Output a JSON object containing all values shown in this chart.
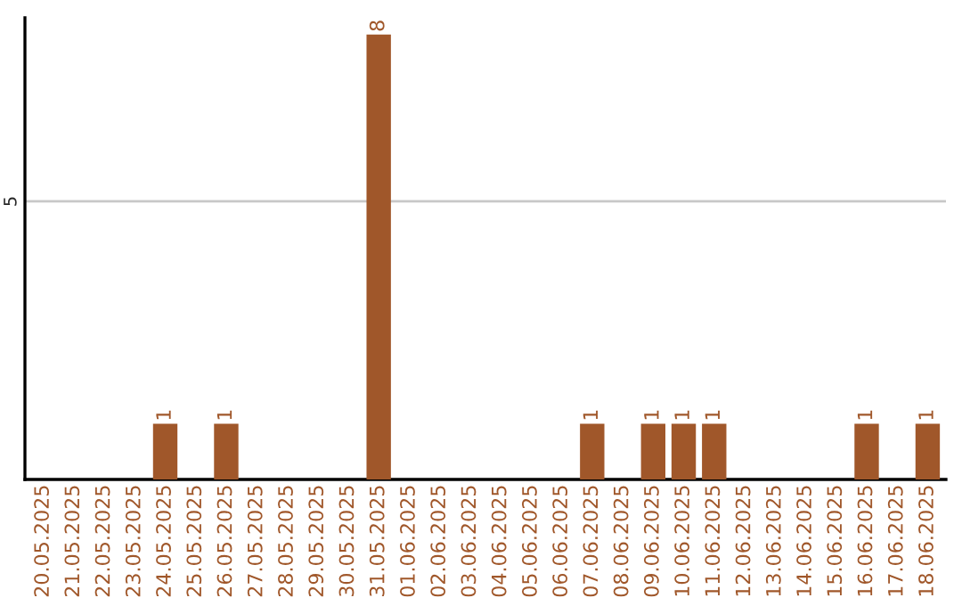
{
  "chart_data": {
    "type": "bar",
    "categories": [
      "20.05.2025",
      "21.05.2025",
      "22.05.2025",
      "23.05.2025",
      "24.05.2025",
      "25.05.2025",
      "26.05.2025",
      "27.05.2025",
      "28.05.2025",
      "29.05.2025",
      "30.05.2025",
      "31.05.2025",
      "01.06.2025",
      "02.06.2025",
      "03.06.2025",
      "04.06.2025",
      "05.06.2025",
      "06.06.2025",
      "07.06.2025",
      "08.06.2025",
      "09.06.2025",
      "10.06.2025",
      "11.06.2025",
      "12.06.2025",
      "13.06.2025",
      "14.06.2025",
      "15.06.2025",
      "16.06.2025",
      "17.06.2025",
      "18.06.2025"
    ],
    "values": [
      0,
      0,
      0,
      0,
      1,
      0,
      1,
      0,
      0,
      0,
      0,
      8,
      0,
      0,
      0,
      0,
      0,
      0,
      1,
      0,
      1,
      1,
      1,
      0,
      0,
      0,
      0,
      1,
      0,
      1
    ],
    "value_labels": [
      null,
      null,
      null,
      null,
      "1",
      null,
      "1",
      null,
      null,
      null,
      null,
      "8",
      null,
      null,
      null,
      null,
      null,
      null,
      "1",
      null,
      "1",
      "1",
      "1",
      null,
      null,
      null,
      null,
      "1",
      null,
      "1"
    ],
    "color": "#a0572a",
    "ylim": [
      0,
      8.3
    ],
    "yticks": [
      5
    ],
    "grid": "y"
  }
}
